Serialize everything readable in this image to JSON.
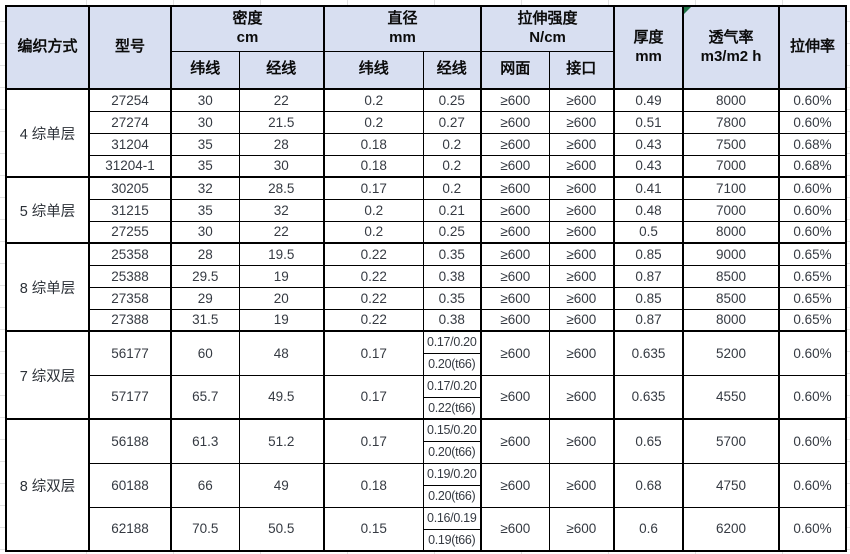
{
  "colors": {
    "header_bg": "#d8dff1",
    "border": "#000000",
    "comment_indicator_green": "#1e7145",
    "body_text": "#353a42"
  },
  "header": {
    "weave_method": "编织方式",
    "model": "型号",
    "density_title": "密度",
    "density_unit": "cm",
    "diameter_title": "直径",
    "diameter_unit": "mm",
    "tensile_title": "拉伸强度",
    "tensile_unit": "N/cm",
    "density_weft": "纬线",
    "density_warp": "经线",
    "diameter_weft": "纬线",
    "diameter_warp": "经线",
    "mesh_face": "网面",
    "joint": "接口",
    "thickness_title": "厚度",
    "thickness_unit": "mm",
    "permeability_title": "透气率",
    "permeability_unit": "m3/m2 h",
    "elongation": "拉伸率"
  },
  "groups": [
    {
      "label": "4 综单层",
      "rows": [
        {
          "model": "27254",
          "density_weft": "30",
          "density_warp": "22",
          "dia_weft": "0.2",
          "dia_warp": [
            "0.25"
          ],
          "mesh": "≥600",
          "joint": "≥600",
          "thickness": "0.49",
          "permeability": "8000",
          "elongation": "0.60%"
        },
        {
          "model": "27274",
          "density_weft": "30",
          "density_warp": "21.5",
          "dia_weft": "0.2",
          "dia_warp": [
            "0.27"
          ],
          "mesh": "≥600",
          "joint": "≥600",
          "thickness": "0.51",
          "permeability": "7800",
          "elongation": "0.60%"
        },
        {
          "model": "31204",
          "density_weft": "35",
          "density_warp": "28",
          "dia_weft": "0.18",
          "dia_warp": [
            "0.2"
          ],
          "mesh": "≥600",
          "joint": "≥600",
          "thickness": "0.43",
          "permeability": "7500",
          "elongation": "0.68%"
        },
        {
          "model": "31204-1",
          "density_weft": "35",
          "density_warp": "30",
          "dia_weft": "0.18",
          "dia_warp": [
            "0.2"
          ],
          "mesh": "≥600",
          "joint": "≥600",
          "thickness": "0.43",
          "permeability": "7000",
          "elongation": "0.68%"
        }
      ]
    },
    {
      "label": "5 综单层",
      "rows": [
        {
          "model": "30205",
          "density_weft": "32",
          "density_warp": "28.5",
          "dia_weft": "0.17",
          "dia_warp": [
            "0.2"
          ],
          "mesh": "≥600",
          "joint": "≥600",
          "thickness": "0.41",
          "permeability": "7100",
          "elongation": "0.60%"
        },
        {
          "model": "31215",
          "density_weft": "35",
          "density_warp": "32",
          "dia_weft": "0.2",
          "dia_warp": [
            "0.21"
          ],
          "mesh": "≥600",
          "joint": "≥600",
          "thickness": "0.48",
          "permeability": "7000",
          "elongation": "0.60%"
        },
        {
          "model": "27255",
          "density_weft": "30",
          "density_warp": "22",
          "dia_weft": "0.2",
          "dia_warp": [
            "0.25"
          ],
          "mesh": "≥600",
          "joint": "≥600",
          "thickness": "0.5",
          "permeability": "8000",
          "elongation": "0.60%"
        }
      ]
    },
    {
      "label": "8 综单层",
      "rows": [
        {
          "model": "25358",
          "density_weft": "28",
          "density_warp": "19.5",
          "dia_weft": "0.22",
          "dia_warp": [
            "0.35"
          ],
          "mesh": "≥600",
          "joint": "≥600",
          "thickness": "0.85",
          "permeability": "9000",
          "elongation": "0.65%"
        },
        {
          "model": "25388",
          "density_weft": "29.5",
          "density_warp": "19",
          "dia_weft": "0.22",
          "dia_warp": [
            "0.38"
          ],
          "mesh": "≥600",
          "joint": "≥600",
          "thickness": "0.87",
          "permeability": "8500",
          "elongation": "0.65%"
        },
        {
          "model": "27358",
          "density_weft": "29",
          "density_warp": "20",
          "dia_weft": "0.22",
          "dia_warp": [
            "0.35"
          ],
          "mesh": "≥600",
          "joint": "≥600",
          "thickness": "0.85",
          "permeability": "8500",
          "elongation": "0.65%"
        },
        {
          "model": "27388",
          "density_weft": "31.5",
          "density_warp": "19",
          "dia_weft": "0.22",
          "dia_warp": [
            "0.38"
          ],
          "mesh": "≥600",
          "joint": "≥600",
          "thickness": "0.87",
          "permeability": "8000",
          "elongation": "0.65%"
        }
      ]
    },
    {
      "label": "7 综双层",
      "rows": [
        {
          "model": "56177",
          "density_weft": "60",
          "density_warp": "48",
          "dia_weft": "0.17",
          "dia_warp": [
            "0.17/0.20",
            "0.20(t66)"
          ],
          "mesh": "≥600",
          "joint": "≥600",
          "thickness": "0.635",
          "permeability": "5200",
          "elongation": "0.60%"
        },
        {
          "model": "57177",
          "density_weft": "65.7",
          "density_warp": "49.5",
          "dia_weft": "0.17",
          "dia_warp": [
            "0.17/0.20",
            "0.22(t66)"
          ],
          "mesh": "≥600",
          "joint": "≥600",
          "thickness": "0.635",
          "permeability": "4550",
          "elongation": "0.60%"
        }
      ]
    },
    {
      "label": "8 综双层",
      "rows": [
        {
          "model": "56188",
          "density_weft": "61.3",
          "density_warp": "51.2",
          "dia_weft": "0.17",
          "dia_warp": [
            "0.15/0.20",
            "0.20(t66)"
          ],
          "mesh": "≥600",
          "joint": "≥600",
          "thickness": "0.65",
          "permeability": "5700",
          "elongation": "0.60%"
        },
        {
          "model": "60188",
          "density_weft": "66",
          "density_warp": "49",
          "dia_weft": "0.18",
          "dia_warp": [
            "0.19/0.20",
            "0.20(t66)"
          ],
          "mesh": "≥600",
          "joint": "≥600",
          "thickness": "0.68",
          "permeability": "4750",
          "elongation": "0.60%"
        },
        {
          "model": "62188",
          "density_weft": "70.5",
          "density_warp": "50.5",
          "dia_weft": "0.15",
          "dia_warp": [
            "0.16/0.19",
            "0.19(t66)"
          ],
          "mesh": "≥600",
          "joint": "≥600",
          "thickness": "0.6",
          "permeability": "6200",
          "elongation": "0.60%"
        }
      ]
    }
  ]
}
